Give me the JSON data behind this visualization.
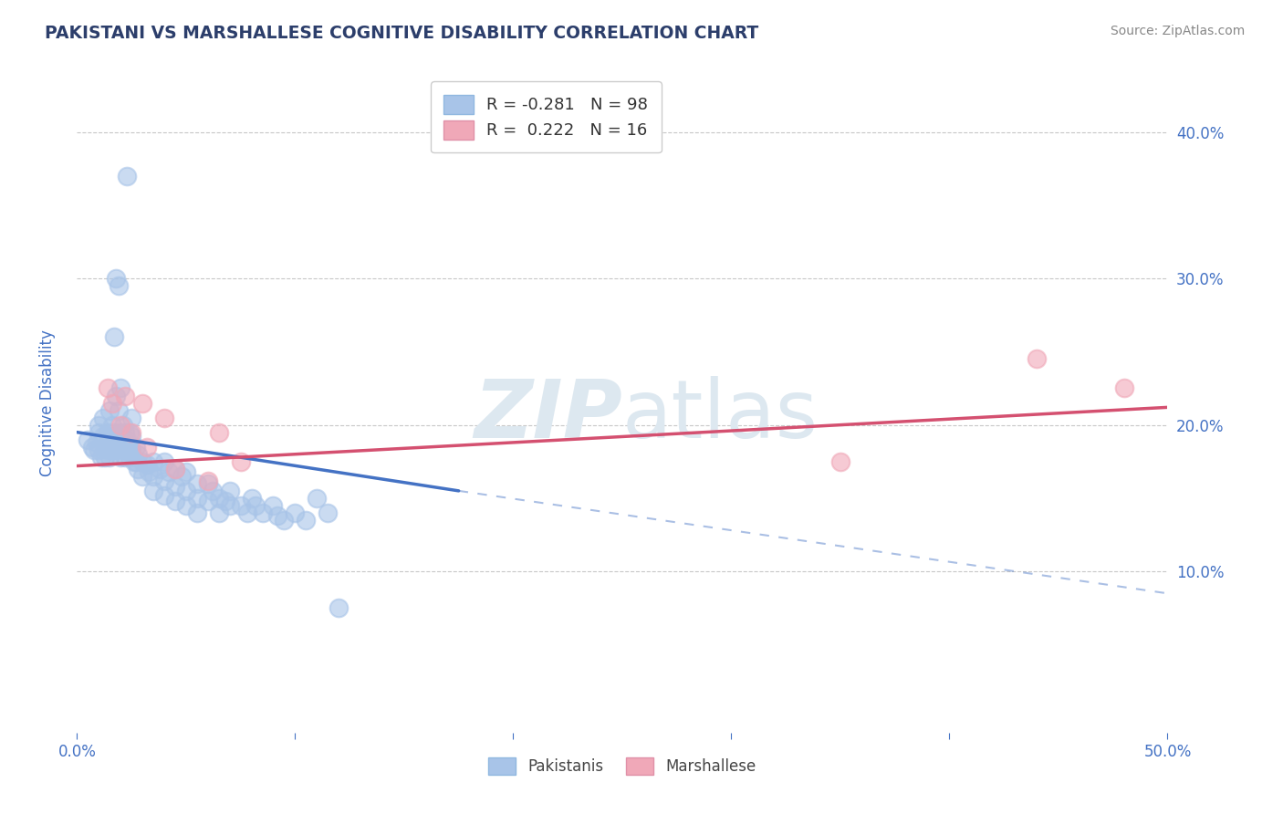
{
  "title": "PAKISTANI VS MARSHALLESE COGNITIVE DISABILITY CORRELATION CHART",
  "source": "Source: ZipAtlas.com",
  "ylabel": "Cognitive Disability",
  "xlim": [
    0.0,
    0.5
  ],
  "ylim": [
    -0.01,
    0.44
  ],
  "yticks": [
    0.1,
    0.2,
    0.3,
    0.4
  ],
  "ytick_labels": [
    "10.0%",
    "20.0%",
    "30.0%",
    "40.0%"
  ],
  "xticks": [
    0.0,
    0.1,
    0.2,
    0.3,
    0.4,
    0.5
  ],
  "xtick_labels_show": [
    "0.0%",
    "50.0%"
  ],
  "pakistani_color": "#a8c4e8",
  "marshallese_color": "#f0a8b8",
  "line_pakistani_color": "#4472c4",
  "line_marshallese_color": "#d45070",
  "watermark_color": "#dde8f0",
  "background_color": "#ffffff",
  "grid_color": "#c8c8c8",
  "title_color": "#2c3e6b",
  "axis_label_color": "#4472c4",
  "pakistani_points": [
    [
      0.005,
      0.19
    ],
    [
      0.007,
      0.185
    ],
    [
      0.008,
      0.183
    ],
    [
      0.009,
      0.188
    ],
    [
      0.01,
      0.2
    ],
    [
      0.01,
      0.195
    ],
    [
      0.01,
      0.183
    ],
    [
      0.011,
      0.178
    ],
    [
      0.012,
      0.205
    ],
    [
      0.012,
      0.192
    ],
    [
      0.013,
      0.185
    ],
    [
      0.013,
      0.178
    ],
    [
      0.014,
      0.195
    ],
    [
      0.014,
      0.188
    ],
    [
      0.014,
      0.183
    ],
    [
      0.015,
      0.21
    ],
    [
      0.015,
      0.192
    ],
    [
      0.015,
      0.185
    ],
    [
      0.015,
      0.178
    ],
    [
      0.016,
      0.2
    ],
    [
      0.016,
      0.19
    ],
    [
      0.016,
      0.183
    ],
    [
      0.017,
      0.26
    ],
    [
      0.017,
      0.195
    ],
    [
      0.017,
      0.185
    ],
    [
      0.018,
      0.3
    ],
    [
      0.018,
      0.22
    ],
    [
      0.018,
      0.192
    ],
    [
      0.018,
      0.183
    ],
    [
      0.019,
      0.295
    ],
    [
      0.019,
      0.21
    ],
    [
      0.019,
      0.188
    ],
    [
      0.02,
      0.225
    ],
    [
      0.02,
      0.195
    ],
    [
      0.02,
      0.185
    ],
    [
      0.02,
      0.178
    ],
    [
      0.021,
      0.2
    ],
    [
      0.021,
      0.19
    ],
    [
      0.021,
      0.183
    ],
    [
      0.022,
      0.195
    ],
    [
      0.022,
      0.185
    ],
    [
      0.022,
      0.178
    ],
    [
      0.023,
      0.37
    ],
    [
      0.023,
      0.19
    ],
    [
      0.023,
      0.183
    ],
    [
      0.024,
      0.195
    ],
    [
      0.024,
      0.185
    ],
    [
      0.024,
      0.178
    ],
    [
      0.025,
      0.205
    ],
    [
      0.025,
      0.192
    ],
    [
      0.025,
      0.183
    ],
    [
      0.026,
      0.175
    ],
    [
      0.027,
      0.185
    ],
    [
      0.027,
      0.175
    ],
    [
      0.028,
      0.18
    ],
    [
      0.028,
      0.17
    ],
    [
      0.03,
      0.175
    ],
    [
      0.03,
      0.165
    ],
    [
      0.032,
      0.173
    ],
    [
      0.033,
      0.168
    ],
    [
      0.035,
      0.175
    ],
    [
      0.035,
      0.165
    ],
    [
      0.035,
      0.155
    ],
    [
      0.038,
      0.17
    ],
    [
      0.04,
      0.175
    ],
    [
      0.04,
      0.162
    ],
    [
      0.04,
      0.152
    ],
    [
      0.042,
      0.168
    ],
    [
      0.045,
      0.17
    ],
    [
      0.045,
      0.158
    ],
    [
      0.045,
      0.148
    ],
    [
      0.048,
      0.165
    ],
    [
      0.05,
      0.168
    ],
    [
      0.05,
      0.155
    ],
    [
      0.05,
      0.145
    ],
    [
      0.055,
      0.16
    ],
    [
      0.055,
      0.15
    ],
    [
      0.055,
      0.14
    ],
    [
      0.06,
      0.16
    ],
    [
      0.06,
      0.148
    ],
    [
      0.062,
      0.155
    ],
    [
      0.065,
      0.15
    ],
    [
      0.065,
      0.14
    ],
    [
      0.068,
      0.148
    ],
    [
      0.07,
      0.155
    ],
    [
      0.07,
      0.145
    ],
    [
      0.075,
      0.145
    ],
    [
      0.078,
      0.14
    ],
    [
      0.08,
      0.15
    ],
    [
      0.082,
      0.145
    ],
    [
      0.085,
      0.14
    ],
    [
      0.09,
      0.145
    ],
    [
      0.092,
      0.138
    ],
    [
      0.095,
      0.135
    ],
    [
      0.1,
      0.14
    ],
    [
      0.105,
      0.135
    ],
    [
      0.11,
      0.15
    ],
    [
      0.115,
      0.14
    ],
    [
      0.12,
      0.075
    ]
  ],
  "marshallese_points": [
    [
      0.014,
      0.225
    ],
    [
      0.016,
      0.215
    ],
    [
      0.02,
      0.2
    ],
    [
      0.022,
      0.22
    ],
    [
      0.025,
      0.195
    ],
    [
      0.03,
      0.215
    ],
    [
      0.032,
      0.185
    ],
    [
      0.04,
      0.205
    ],
    [
      0.045,
      0.17
    ],
    [
      0.06,
      0.162
    ],
    [
      0.065,
      0.195
    ],
    [
      0.075,
      0.175
    ],
    [
      0.35,
      0.175
    ],
    [
      0.44,
      0.245
    ],
    [
      0.48,
      0.225
    ]
  ],
  "pakistani_line_solid": [
    [
      0.0,
      0.195
    ],
    [
      0.175,
      0.155
    ]
  ],
  "pakistani_line_dash": [
    [
      0.175,
      0.155
    ],
    [
      0.5,
      0.085
    ]
  ],
  "marshallese_line": [
    [
      0.0,
      0.172
    ],
    [
      0.5,
      0.212
    ]
  ]
}
